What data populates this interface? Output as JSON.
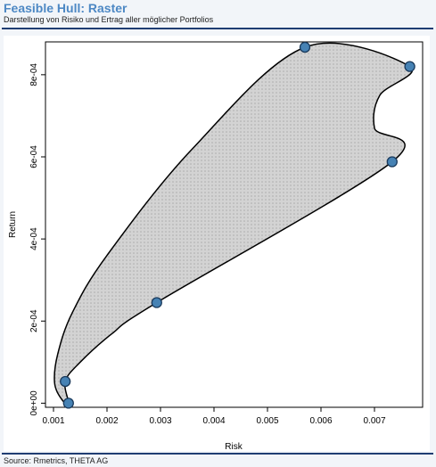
{
  "header": {
    "title": "Feasible Hull: Raster",
    "subtitle": "Darstellung von Risiko und Ertrag aller möglicher Portfolios"
  },
  "footer": {
    "source": "Source: Rmetrics, THETA AG"
  },
  "chart_data": {
    "type": "scatter",
    "xlabel": "Risk",
    "ylabel": "Return",
    "xlim": [
      0.00085,
      0.0079
    ],
    "ylim": [
      -1e-05,
      0.00088
    ],
    "x_ticks": [
      0.001,
      0.002,
      0.003,
      0.004,
      0.005,
      0.006,
      0.007
    ],
    "x_tick_labels": [
      "0.001",
      "0.002",
      "0.003",
      "0.004",
      "0.005",
      "0.006",
      "0.007"
    ],
    "y_ticks": [
      0,
      0.0002,
      0.0004,
      0.0006,
      0.0008
    ],
    "y_tick_labels": [
      "0e+00",
      "2e-04",
      "4e-04",
      "6e-04",
      "8e-04"
    ],
    "grid": false,
    "points": [
      {
        "x": 0.00128,
        "y": 0.0
      },
      {
        "x": 0.00122,
        "y": 5.3e-05
      },
      {
        "x": 0.00293,
        "y": 0.000245
      },
      {
        "x": 0.00733,
        "y": 0.000588
      },
      {
        "x": 0.00766,
        "y": 0.00082
      },
      {
        "x": 0.0057,
        "y": 0.000867
      }
    ],
    "hull": [
      {
        "x": 0.00128,
        "y": 0.0
      },
      {
        "x": 0.00122,
        "y": 5.3e-05
      },
      {
        "x": 0.0015,
        "y": 0.0001
      },
      {
        "x": 0.0021,
        "y": 0.00017
      },
      {
        "x": 0.00293,
        "y": 0.000245
      },
      {
        "x": 0.00733,
        "y": 0.000588
      },
      {
        "x": 0.007,
        "y": 0.00067
      },
      {
        "x": 0.0071,
        "y": 0.00075
      },
      {
        "x": 0.00766,
        "y": 0.00082
      },
      {
        "x": 0.0057,
        "y": 0.000867
      },
      {
        "x": 0.0036,
        "y": 0.00062
      },
      {
        "x": 0.002,
        "y": 0.00036
      },
      {
        "x": 0.00135,
        "y": 0.00022
      },
      {
        "x": 0.00108,
        "y": 0.00012
      },
      {
        "x": 0.00102,
        "y": 5e-05
      },
      {
        "x": 0.00115,
        "y": 1e-05
      }
    ],
    "colors": {
      "fill": "#d3d3d3",
      "raster_dots": "#a8a8a8",
      "outline": "#000000",
      "point_fill": "#4682b4",
      "point_stroke": "#1a3a5c"
    }
  }
}
